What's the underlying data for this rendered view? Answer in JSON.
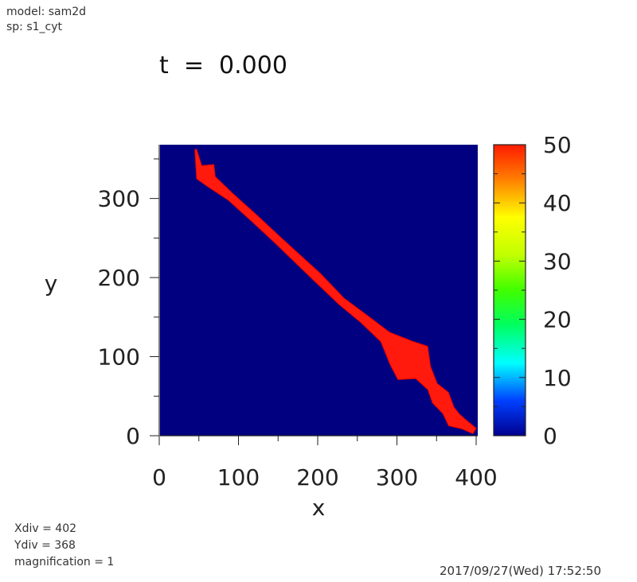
{
  "header": {
    "model_label": "model: sam2d",
    "species_label": "sp: s1_cyt",
    "time_label": "t  =  0.000"
  },
  "footer": {
    "xdiv_label": "Xdiv = 402",
    "ydiv_label": "Ydiv = 368",
    "magnification_label": "magnification = 1",
    "timestamp": "2017/09/27(Wed) 17:52:50"
  },
  "colors": {
    "background_field": "#000080",
    "cell": "#ff1a0d",
    "cell_outline": "#e60000"
  },
  "chart_data": {
    "type": "heatmap",
    "title": "t = 0.000",
    "xlabel": "x",
    "ylabel": "y",
    "xlim": [
      0,
      402
    ],
    "ylim": [
      0,
      368
    ],
    "x_ticks": [
      0,
      100,
      200,
      300,
      400
    ],
    "y_ticks": [
      0,
      100,
      200,
      300
    ],
    "grid": false,
    "colorbar": {
      "range": [
        0,
        50
      ],
      "ticks": [
        0,
        10,
        20,
        30,
        40,
        50
      ],
      "colormap": "jet"
    },
    "field_value": 0,
    "cell_value": 50,
    "cell_spine": [
      {
        "x": 46,
        "y": 362,
        "w": 1
      },
      {
        "x": 50,
        "y": 340,
        "w": 4
      },
      {
        "x": 58,
        "y": 334,
        "w": 14
      },
      {
        "x": 65,
        "y": 322,
        "w": 8
      },
      {
        "x": 90,
        "y": 302,
        "w": 5
      },
      {
        "x": 120,
        "y": 275,
        "w": 5
      },
      {
        "x": 150,
        "y": 247,
        "w": 5
      },
      {
        "x": 200,
        "y": 200,
        "w": 6
      },
      {
        "x": 230,
        "y": 170,
        "w": 5
      },
      {
        "x": 258,
        "y": 148,
        "w": 6
      },
      {
        "x": 285,
        "y": 125,
        "w": 8
      },
      {
        "x": 305,
        "y": 105,
        "w": 20
      },
      {
        "x": 320,
        "y": 92,
        "w": 28
      },
      {
        "x": 333,
        "y": 80,
        "w": 12
      },
      {
        "x": 345,
        "y": 62,
        "w": 7
      },
      {
        "x": 355,
        "y": 48,
        "w": 12
      },
      {
        "x": 365,
        "y": 32,
        "w": 8
      },
      {
        "x": 372,
        "y": 20,
        "w": 10
      },
      {
        "x": 385,
        "y": 14,
        "w": 6
      },
      {
        "x": 398,
        "y": 6,
        "w": 4
      }
    ]
  }
}
